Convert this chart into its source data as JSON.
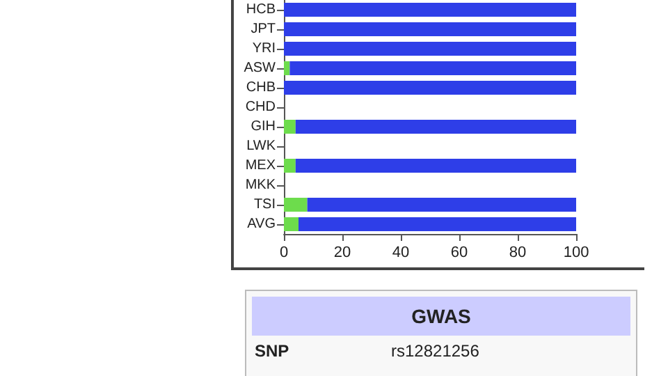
{
  "chart_data": [
    {
      "type": "bar",
      "orientation": "horizontal",
      "stacked": true,
      "categories": [
        "HCB",
        "JPT",
        "YRI",
        "ASW",
        "CHB",
        "CHD",
        "GIH",
        "LWK",
        "MEX",
        "MKK",
        "TSI",
        "AVG"
      ],
      "series": [
        {
          "color": "#6ddc4c",
          "values": [
            0,
            0,
            0,
            2,
            0,
            null,
            4,
            null,
            4,
            null,
            8,
            5
          ]
        },
        {
          "color": "#2e3ee8",
          "values": [
            100,
            100,
            100,
            98,
            100,
            null,
            96,
            null,
            96,
            null,
            92,
            95
          ]
        }
      ],
      "xlim": [
        0,
        100
      ],
      "xticks": [
        0,
        20,
        40,
        60,
        80,
        100
      ]
    },
    {
      "type": "other",
      "title": "GWAS",
      "annotations": [
        "SNP",
        "rs12821256"
      ]
    }
  ]
}
